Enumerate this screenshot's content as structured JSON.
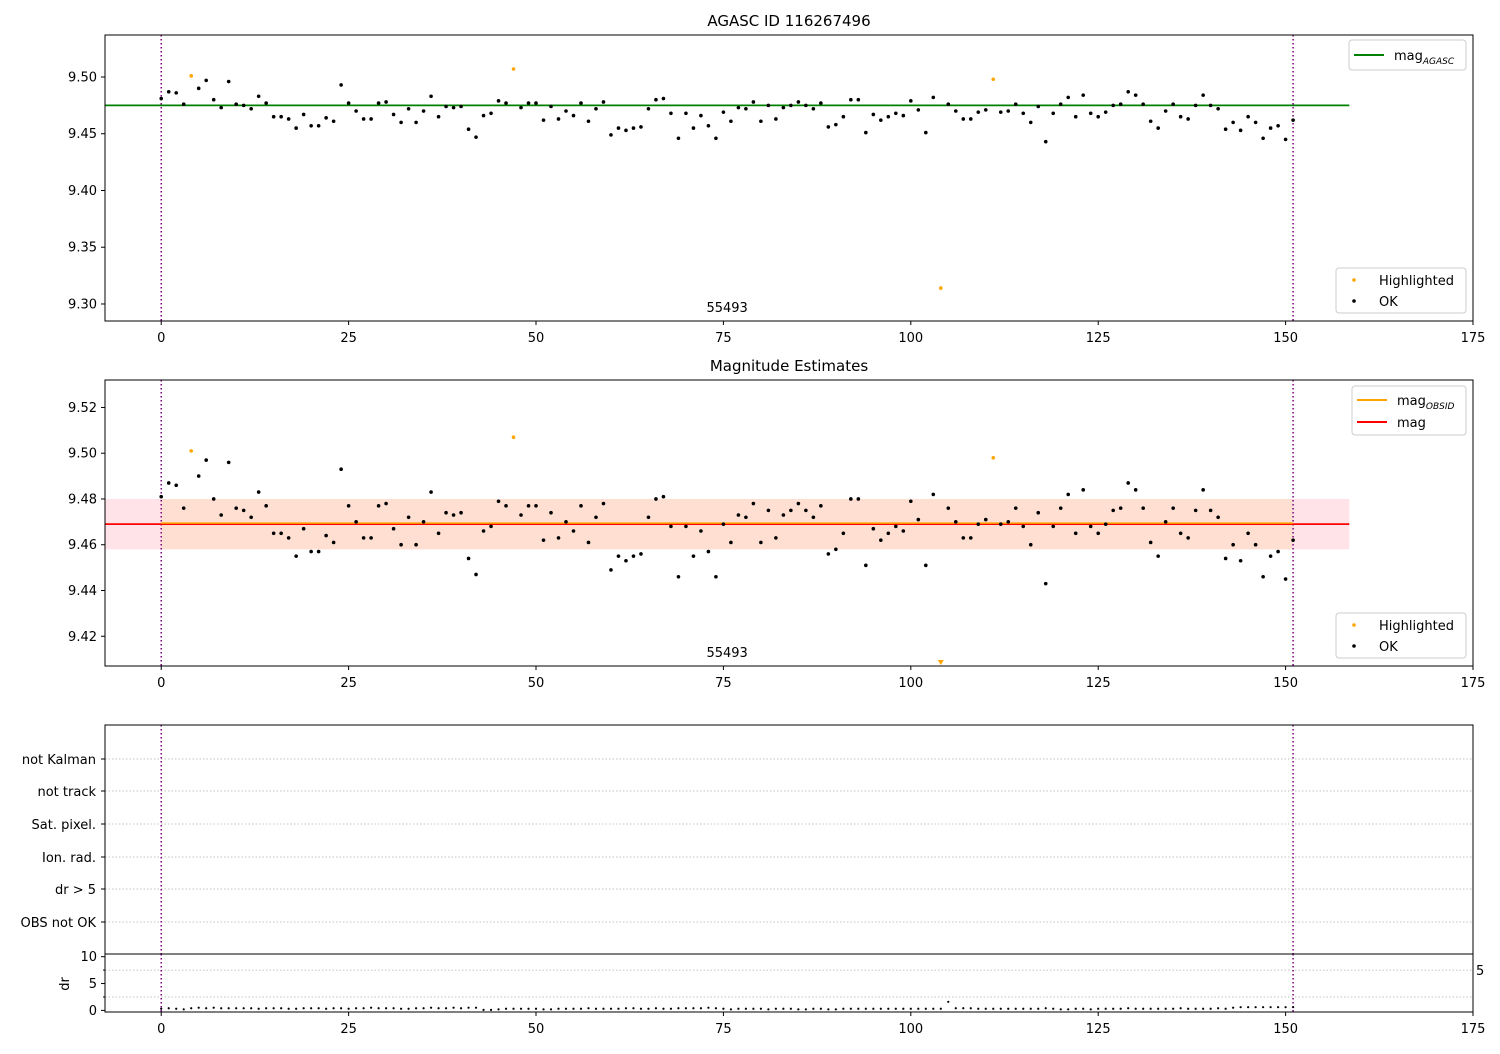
{
  "chart_data": [
    {
      "type": "scatter",
      "title": "AGASC ID 116267496",
      "xlim": [
        -7.5,
        175
      ],
      "ylim": [
        9.285,
        9.537
      ],
      "x_ticks": [
        0,
        25,
        50,
        75,
        100,
        125,
        150,
        175
      ],
      "y_ticks": [
        9.3,
        9.35,
        9.4,
        9.45,
        9.5
      ],
      "y_tick_labels": [
        "9.30",
        "9.35",
        "9.40",
        "9.45",
        "9.50"
      ],
      "annotation": "55493",
      "lines": [
        {
          "name": "mag",
          "sub": "AGASC",
          "value": 9.475,
          "color": "#008000"
        }
      ],
      "vlines": [
        0,
        151
      ],
      "series": [
        {
          "name": "Highlighted",
          "color": "#ffa500",
          "x": [
            4,
            47,
            104,
            111
          ],
          "y": [
            9.501,
            9.507,
            9.314,
            9.498
          ]
        },
        {
          "name": "OK",
          "color": "#000000",
          "x": [
            0,
            1,
            2,
            3,
            5,
            6,
            7,
            8,
            9,
            10,
            11,
            12,
            13,
            14,
            15,
            16,
            17,
            18,
            19,
            20,
            21,
            22,
            23,
            24,
            25,
            26,
            27,
            28,
            29,
            30,
            31,
            32,
            33,
            34,
            35,
            36,
            37,
            38,
            39,
            40,
            41,
            42,
            43,
            44,
            45,
            46,
            48,
            49,
            50,
            51,
            52,
            53,
            54,
            55,
            56,
            57,
            58,
            59,
            60,
            61,
            62,
            63,
            64,
            65,
            66,
            67,
            68,
            69,
            70,
            71,
            72,
            73,
            74,
            75,
            76,
            77,
            78,
            79,
            80,
            81,
            82,
            83,
            84,
            85,
            86,
            87,
            88,
            89,
            90,
            91,
            92,
            93,
            94,
            95,
            96,
            97,
            98,
            99,
            100,
            101,
            102,
            103,
            105,
            106,
            107,
            108,
            109,
            110,
            112,
            113,
            114,
            115,
            116,
            117,
            118,
            119,
            120,
            121,
            122,
            123,
            124,
            125,
            126,
            127,
            128,
            129,
            130,
            131,
            132,
            133,
            134,
            135,
            136,
            137,
            138,
            139,
            140,
            141,
            142,
            143,
            144,
            145,
            146,
            147,
            148,
            149,
            150,
            151
          ],
          "y": [
            9.481,
            9.487,
            9.486,
            9.476,
            9.49,
            9.497,
            9.48,
            9.473,
            9.496,
            9.476,
            9.475,
            9.472,
            9.483,
            9.477,
            9.465,
            9.465,
            9.463,
            9.455,
            9.467,
            9.457,
            9.457,
            9.464,
            9.461,
            9.493,
            9.477,
            9.47,
            9.463,
            9.463,
            9.477,
            9.478,
            9.467,
            9.46,
            9.472,
            9.46,
            9.47,
            9.483,
            9.465,
            9.474,
            9.473,
            9.474,
            9.454,
            9.447,
            9.466,
            9.468,
            9.479,
            9.477,
            9.473,
            9.477,
            9.477,
            9.462,
            9.474,
            9.463,
            9.47,
            9.466,
            9.477,
            9.461,
            9.472,
            9.478,
            9.449,
            9.455,
            9.453,
            9.455,
            9.456,
            9.472,
            9.48,
            9.481,
            9.468,
            9.446,
            9.468,
            9.455,
            9.466,
            9.457,
            9.446,
            9.469,
            9.461,
            9.473,
            9.472,
            9.478,
            9.461,
            9.475,
            9.463,
            9.473,
            9.475,
            9.478,
            9.475,
            9.472,
            9.477,
            9.456,
            9.458,
            9.465,
            9.48,
            9.48,
            9.451,
            9.467,
            9.462,
            9.465,
            9.468,
            9.466,
            9.479,
            9.471,
            9.451,
            9.482,
            9.476,
            9.47,
            9.463,
            9.463,
            9.469,
            9.471,
            9.469,
            9.47,
            9.476,
            9.468,
            9.46,
            9.474,
            9.443,
            9.468,
            9.476,
            9.482,
            9.465,
            9.484,
            9.468,
            9.465,
            9.469,
            9.475,
            9.476,
            9.487,
            9.484,
            9.476,
            9.461,
            9.455,
            9.47,
            9.476,
            9.465,
            9.463,
            9.475,
            9.484,
            9.475,
            9.472,
            9.454,
            9.46,
            9.453,
            9.465,
            9.46,
            9.446,
            9.455,
            9.457,
            9.445,
            9.462
          ]
        }
      ]
    },
    {
      "type": "scatter",
      "title": "Magnitude Estimates",
      "xlim": [
        -7.5,
        175
      ],
      "ylim": [
        9.407,
        9.532
      ],
      "x_ticks": [
        0,
        25,
        50,
        75,
        100,
        125,
        150,
        175
      ],
      "y_ticks": [
        9.42,
        9.44,
        9.46,
        9.48,
        9.5,
        9.52
      ],
      "y_tick_labels": [
        "9.42",
        "9.44",
        "9.46",
        "9.48",
        "9.50",
        "9.52"
      ],
      "annotation": "55493",
      "lines": [
        {
          "name": "mag",
          "sub": "OBSID",
          "value": 9.469,
          "color": "#ffa500"
        },
        {
          "name": "mag",
          "sub": "",
          "value": 9.469,
          "color": "#ff0000"
        }
      ],
      "bands": [
        {
          "y0": 9.458,
          "y1": 9.48,
          "color": "#ffc0cb",
          "x0": -7.5,
          "x1": 158.5
        },
        {
          "y0": 9.458,
          "y1": 9.48,
          "color": "#ffdab9",
          "x0": 0,
          "x1": 151
        }
      ],
      "vlines": [
        0,
        151
      ],
      "off_scale_marker_x": 104,
      "series": [
        {
          "name": "Highlighted",
          "color": "#ffa500",
          "x": [
            4,
            47,
            111
          ],
          "y": [
            9.501,
            9.507,
            9.498
          ]
        },
        {
          "name": "OK",
          "color": "#000000",
          "ref": 0
        }
      ]
    },
    {
      "type": "flags",
      "categories": [
        "not Kalman",
        "not track",
        "Sat. pixel.",
        "Ion. rad.",
        "dr > 5",
        "OBS not OK"
      ],
      "x_ticks": [
        0,
        25,
        50,
        75,
        100,
        125,
        150,
        175
      ],
      "vlines": [
        0,
        151
      ]
    },
    {
      "type": "scatter",
      "ylabel": "dr",
      "ylim": [
        -0.3,
        10.5
      ],
      "y_ticks": [
        0,
        5,
        10
      ],
      "y_tick_labels": [
        "0",
        "5",
        "10"
      ],
      "right_label": "5",
      "xlim": [
        -7.5,
        175
      ],
      "x_ticks": [
        0,
        25,
        50,
        75,
        100,
        125,
        150,
        175
      ],
      "vlines": [
        0,
        151
      ],
      "series": [
        {
          "name": "dr",
          "color": "#000000",
          "values": [
            0.3,
            0.4,
            0.3,
            0.2,
            0.4,
            0.5,
            0.4,
            0.5,
            0.4,
            0.4,
            0.4,
            0.4,
            0.4,
            0.3,
            0.4,
            0.4,
            0.4,
            0.3,
            0.3,
            0.4,
            0.4,
            0.4,
            0.3,
            0.4,
            0.4,
            0.3,
            0.4,
            0.4,
            0.5,
            0.4,
            0.4,
            0.4,
            0.3,
            0.3,
            0.4,
            0.4,
            0.5,
            0.4,
            0.4,
            0.5,
            0.4,
            0.5,
            0.5,
            0.1,
            0.1,
            0.2,
            0.3,
            0.3,
            0.3,
            0.3,
            0.3,
            0.2,
            0.2,
            0.3,
            0.3,
            0.3,
            0.3,
            0.4,
            0.3,
            0.3,
            0.3,
            0.3,
            0.4,
            0.4,
            0.3,
            0.3,
            0.4,
            0.3,
            0.3,
            0.4,
            0.4,
            0.4,
            0.4,
            0.5,
            0.4,
            0.3,
            0.2,
            0.3,
            0.3,
            0.3,
            0.3,
            0.2,
            0.3,
            0.3,
            0.3,
            0.2,
            0.2,
            0.3,
            0.3,
            0.2,
            0.2,
            0.3,
            0.3,
            0.3,
            0.3,
            0.3,
            0.3,
            0.3,
            0.3,
            0.3,
            0.3,
            0.3,
            0.3,
            0.3,
            0.3,
            1.6,
            0.4,
            0.4,
            0.4,
            0.3,
            0.3,
            0.3,
            0.3,
            0.3,
            0.3,
            0.3,
            0.3,
            0.3,
            0.4,
            0.3,
            0.2,
            0.2,
            0.3,
            0.3,
            0.2,
            0.3,
            0.3,
            0.3,
            0.3,
            0.4,
            0.3,
            0.3,
            0.3,
            0.3,
            0.3,
            0.3,
            0.4,
            0.3,
            0.3,
            0.3,
            0.3,
            0.4,
            0.3,
            0.5,
            0.6,
            0.6,
            0.6,
            0.6,
            0.6,
            0.6,
            0.6,
            0.6
          ]
        }
      ]
    }
  ],
  "legends": {
    "panel1_lines": [
      {
        "name": "mag",
        "sub": "AGASC",
        "color": "#008000"
      }
    ],
    "panel1_points": [
      {
        "name": "Highlighted",
        "color": "#ffa500"
      },
      {
        "name": "OK",
        "color": "#000000"
      }
    ],
    "panel2_lines": [
      {
        "name": "mag",
        "sub": "OBSID",
        "color": "#ffa500"
      },
      {
        "name": "mag",
        "sub": "",
        "color": "#ff0000"
      }
    ],
    "panel2_points": [
      {
        "name": "Highlighted",
        "color": "#ffa500"
      },
      {
        "name": "OK",
        "color": "#000000"
      }
    ]
  }
}
